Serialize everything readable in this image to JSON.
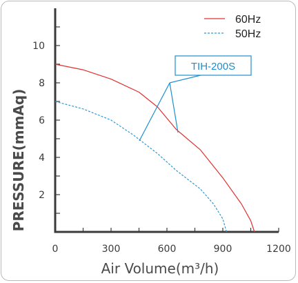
{
  "chart_data": {
    "type": "line",
    "title": "",
    "xlabel": "Air Volume(m³/h)",
    "ylabel": "PRESSURE(mmAq)",
    "xlim": [
      0,
      1200
    ],
    "ylim": [
      0,
      12
    ],
    "x_ticks": [
      "0",
      "300",
      "600",
      "900",
      "1200"
    ],
    "y_ticks": [
      "2",
      "4",
      "6",
      "8",
      "10"
    ],
    "grid": false,
    "legend_position": "top-right",
    "annotation": "TIH-200S",
    "series": [
      {
        "name": "60Hz",
        "color": "#e03030",
        "style": "solid",
        "points": [
          [
            0,
            9.0
          ],
          [
            150,
            8.7
          ],
          [
            300,
            8.2
          ],
          [
            450,
            7.5
          ],
          [
            550,
            6.7
          ],
          [
            650,
            5.5
          ],
          [
            780,
            4.4
          ],
          [
            900,
            2.9
          ],
          [
            1000,
            1.5
          ],
          [
            1050,
            0.6
          ],
          [
            1070,
            0
          ]
        ]
      },
      {
        "name": "50Hz",
        "color": "#2a9ad6",
        "style": "dashed",
        "points": [
          [
            0,
            7.0
          ],
          [
            150,
            6.6
          ],
          [
            300,
            6.0
          ],
          [
            420,
            5.2
          ],
          [
            550,
            4.2
          ],
          [
            650,
            3.3
          ],
          [
            780,
            2.3
          ],
          [
            850,
            1.5
          ],
          [
            900,
            0.7
          ],
          [
            920,
            0
          ]
        ]
      }
    ]
  }
}
